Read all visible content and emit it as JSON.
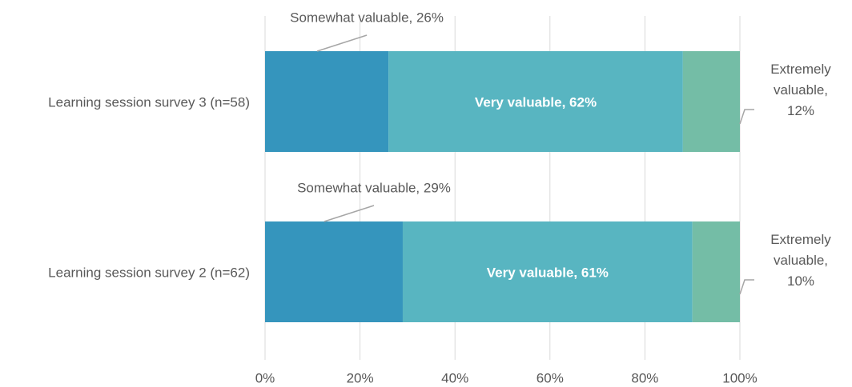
{
  "chart_data": {
    "type": "stacked-bar-horizontal",
    "categories": [
      "Learning session survey 3 (n=58)",
      "Learning session survey 2 (n=62)"
    ],
    "series": [
      {
        "name": "Somewhat valuable",
        "color": "#3595bd",
        "values": [
          26,
          29
        ],
        "value_labels": [
          "Somewhat valuable, 26%",
          "Somewhat valuable, 29%"
        ]
      },
      {
        "name": "Very valuable",
        "color": "#58b5c1",
        "values": [
          62,
          61
        ],
        "value_labels": [
          "Very valuable, 62%",
          "Very valuable, 61%"
        ]
      },
      {
        "name": "Extremely valuable",
        "color": "#74bda6",
        "values": [
          12,
          10
        ],
        "value_labels": [
          "Extremely valuable, 12%",
          "Extremely valuable, 10%"
        ]
      }
    ],
    "xlim": [
      0,
      100
    ],
    "xticks": [
      {
        "value": 0,
        "label": "0%"
      },
      {
        "value": 20,
        "label": "20%"
      },
      {
        "value": 40,
        "label": "40%"
      },
      {
        "value": 60,
        "label": "60%"
      },
      {
        "value": 80,
        "label": "80%"
      },
      {
        "value": 100,
        "label": "100%"
      }
    ],
    "grid": true
  }
}
